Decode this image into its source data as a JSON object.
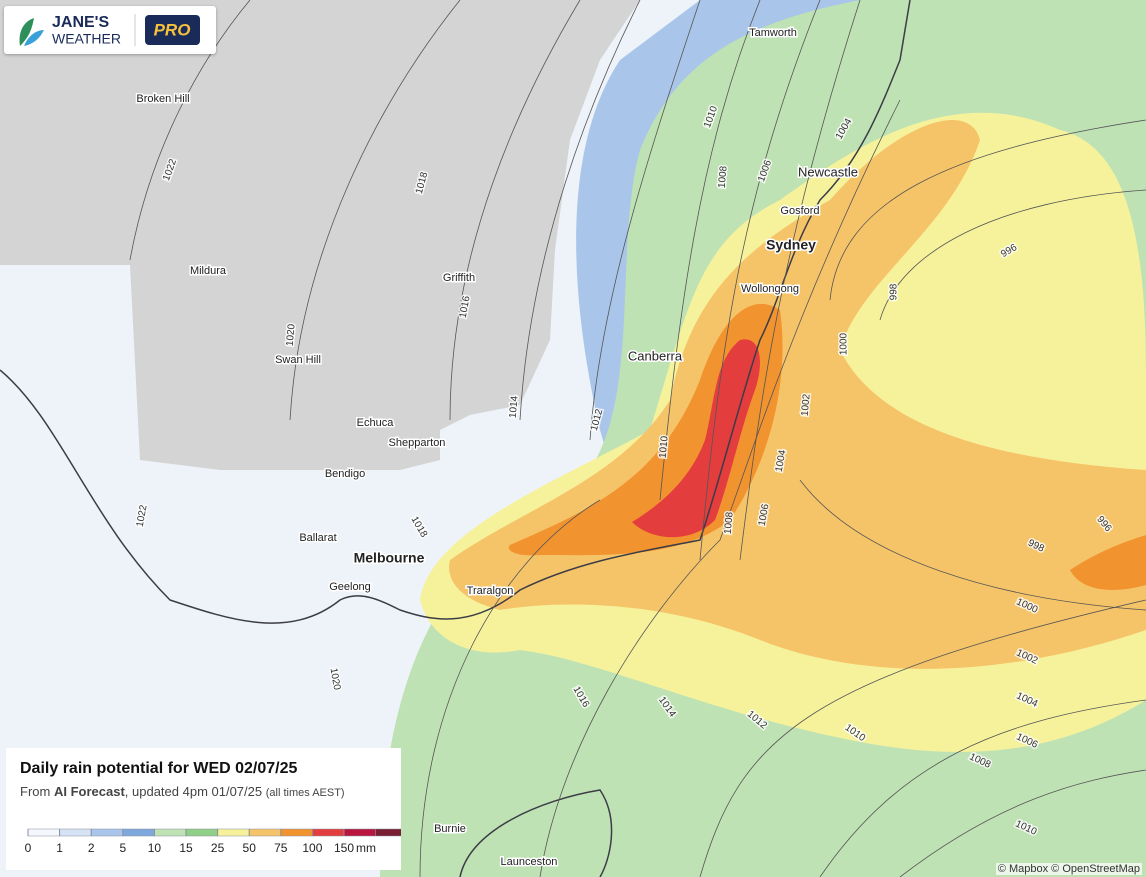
{
  "logo": {
    "line1": "JANE'S",
    "line2": "WEATHER",
    "badge": "PRO"
  },
  "places": [
    "Tamworth",
    "Broken Hill",
    "Newcastle",
    "Gosford",
    "Sydney",
    "Mildura",
    "Wollongong",
    "Griffith",
    "Canberra",
    "Swan Hill",
    "Echuca",
    "Shepparton",
    "Bendigo",
    "Ballarat",
    "Melbourne",
    "Geelong",
    "Traralgon",
    "Burnie",
    "Launceston"
  ],
  "isobars": [
    1022,
    1018,
    1016,
    1020,
    1014,
    1012,
    1010,
    1010,
    1008,
    1006,
    1004,
    996,
    998,
    1000,
    1002,
    1004,
    1006,
    1008,
    1018,
    1022,
    1020,
    1016,
    1014,
    1012,
    1010,
    1008,
    1006,
    1004,
    1002,
    1000,
    998,
    996,
    1010
  ],
  "panel": {
    "title": "Daily rain potential for WED 02/07/25",
    "from": "From",
    "source": "AI Forecast",
    "updated": ", updated 4pm 01/07/25",
    "note": "(all times AEST)",
    "legend": {
      "ticks": [
        0,
        1,
        2,
        5,
        10,
        15,
        25,
        50,
        75,
        100,
        150
      ],
      "unit": "mm",
      "colors": [
        "#f4f7fc",
        "#d6e3f5",
        "#a9c6ea",
        "#7fa9dd",
        "#bfe2b4",
        "#8fcf86",
        "#f6f29c",
        "#f6c468",
        "#f1932f",
        "#e43d3e",
        "#b8163f"
      ],
      "overflow_color": "#7a1e33"
    }
  },
  "attribution": "© Mapbox © OpenStreetMap"
}
